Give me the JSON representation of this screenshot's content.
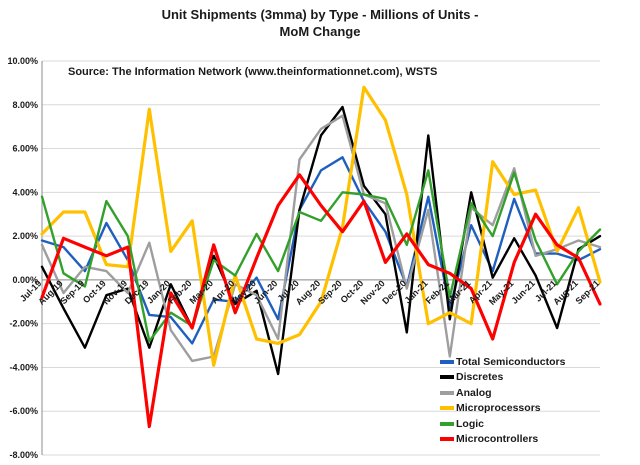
{
  "chart_data": {
    "type": "line",
    "title_lines": [
      "Unit Shipments (3mma) by Type - Millions of Units -",
      "MoM Change"
    ],
    "source": "Source: The Information Network (www.theinformationnet.com), WSTS",
    "x": [
      "Jul-19",
      "Aug-19",
      "Sep-19",
      "Oct-19",
      "Nov-19",
      "Dec-19",
      "Jan-20",
      "Feb-20",
      "Mar-20",
      "Apr-20",
      "May-20",
      "Jun-20",
      "Jul-20",
      "Aug-20",
      "Sep-20",
      "Oct-20",
      "Nov-20",
      "Dec-20",
      "Jan-21",
      "Feb-21",
      "Mar-21",
      "Apr-21",
      "May-21",
      "Jun-21",
      "Jul-21",
      "Aug-21",
      "Sep-21"
    ],
    "x_tick_labels": [
      "Jul-19",
      "Aug-19",
      "Sep-19",
      "Oct-19",
      "Nov-19",
      "Dec-19",
      "Jan-20",
      "Feb-20",
      "Mar-20",
      "Apr-20",
      "May-20",
      "Jun-20",
      "Jul-20",
      "Aug-20",
      "Sep-20",
      "Oct-20",
      "Nov-20",
      "Dec-20",
      "Jan-21",
      "Feb-21",
      "Mar-21",
      "Apr-21",
      "May-21",
      "Jun-21",
      "Jul-21",
      "Aug-21",
      "Sep-21"
    ],
    "y_tick_labels": [
      "10.00%",
      "8.00%",
      "6.00%",
      "4.00%",
      "2.00%",
      "0.00%",
      "-2.00%",
      "-4.00%",
      "-6.00%",
      "-8.00%"
    ],
    "y_ticks": [
      10,
      8,
      6,
      4,
      2,
      0,
      -2,
      -4,
      -6,
      -8
    ],
    "ylim": [
      -8,
      10
    ],
    "y_unit": "%",
    "grid": true,
    "legend_position": "bottom-right",
    "series": [
      {
        "name": "Total Semiconductors",
        "color": "#1f5fbf",
        "values": [
          1.8,
          1.5,
          0.4,
          2.6,
          0.9,
          -1.6,
          -1.7,
          -2.9,
          -0.9,
          -1.0,
          0.1,
          -1.8,
          3.2,
          5.0,
          5.6,
          3.6,
          2.2,
          -0.3,
          3.8,
          -1.3,
          2.5,
          0.4,
          3.7,
          1.2,
          1.2,
          0.9,
          1.4
        ]
      },
      {
        "name": "Discretes",
        "color": "#000000",
        "values": [
          0.6,
          -1.3,
          -3.1,
          -0.7,
          -0.4,
          -3.1,
          -0.2,
          -2.2,
          1.1,
          -1.1,
          -0.5,
          -4.3,
          3.2,
          6.6,
          7.9,
          4.3,
          3.0,
          -2.4,
          6.6,
          -1.8,
          4.0,
          0.1,
          1.9,
          0.2,
          -2.2,
          1.4,
          2.0
        ]
      },
      {
        "name": "Analog",
        "color": "#9e9e9e",
        "values": [
          1.6,
          -0.6,
          0.6,
          0.4,
          -0.6,
          1.7,
          -2.3,
          -3.7,
          -3.5,
          -0.2,
          -0.7,
          -2.7,
          5.5,
          6.9,
          7.5,
          3.9,
          3.5,
          -0.4,
          3.2,
          -3.5,
          3.3,
          2.5,
          5.1,
          1.1,
          1.4,
          1.8,
          1.5
        ]
      },
      {
        "name": "Microprocessors",
        "color": "#ffc000",
        "values": [
          2.1,
          3.1,
          3.1,
          0.7,
          0.6,
          7.8,
          1.3,
          2.7,
          -3.9,
          0.2,
          -2.7,
          -2.9,
          -2.5,
          -1.0,
          2.4,
          8.8,
          7.3,
          3.9,
          -2.0,
          -1.5,
          -2.0,
          5.4,
          3.9,
          4.1,
          1.3,
          3.3,
          -0.1
        ]
      },
      {
        "name": "Logic",
        "color": "#33a02c",
        "values": [
          3.8,
          0.3,
          -0.3,
          3.6,
          2.0,
          -2.8,
          -1.5,
          -2.1,
          0.9,
          0.2,
          2.1,
          0.4,
          3.1,
          2.7,
          4.0,
          3.9,
          3.7,
          1.6,
          5.0,
          -0.8,
          3.5,
          2.0,
          4.9,
          1.8,
          -0.2,
          1.3,
          2.3
        ]
      },
      {
        "name": "Microcontrollers",
        "color": "#ff0000",
        "values": [
          -0.8,
          1.9,
          1.5,
          1.1,
          1.5,
          -6.7,
          -0.6,
          -2.2,
          1.6,
          -1.5,
          1.0,
          3.4,
          4.8,
          3.4,
          2.2,
          3.6,
          0.8,
          2.1,
          0.7,
          0.3,
          -0.4,
          -2.7,
          0.8,
          3.0,
          1.6,
          1.0,
          -1.1
        ]
      }
    ]
  }
}
